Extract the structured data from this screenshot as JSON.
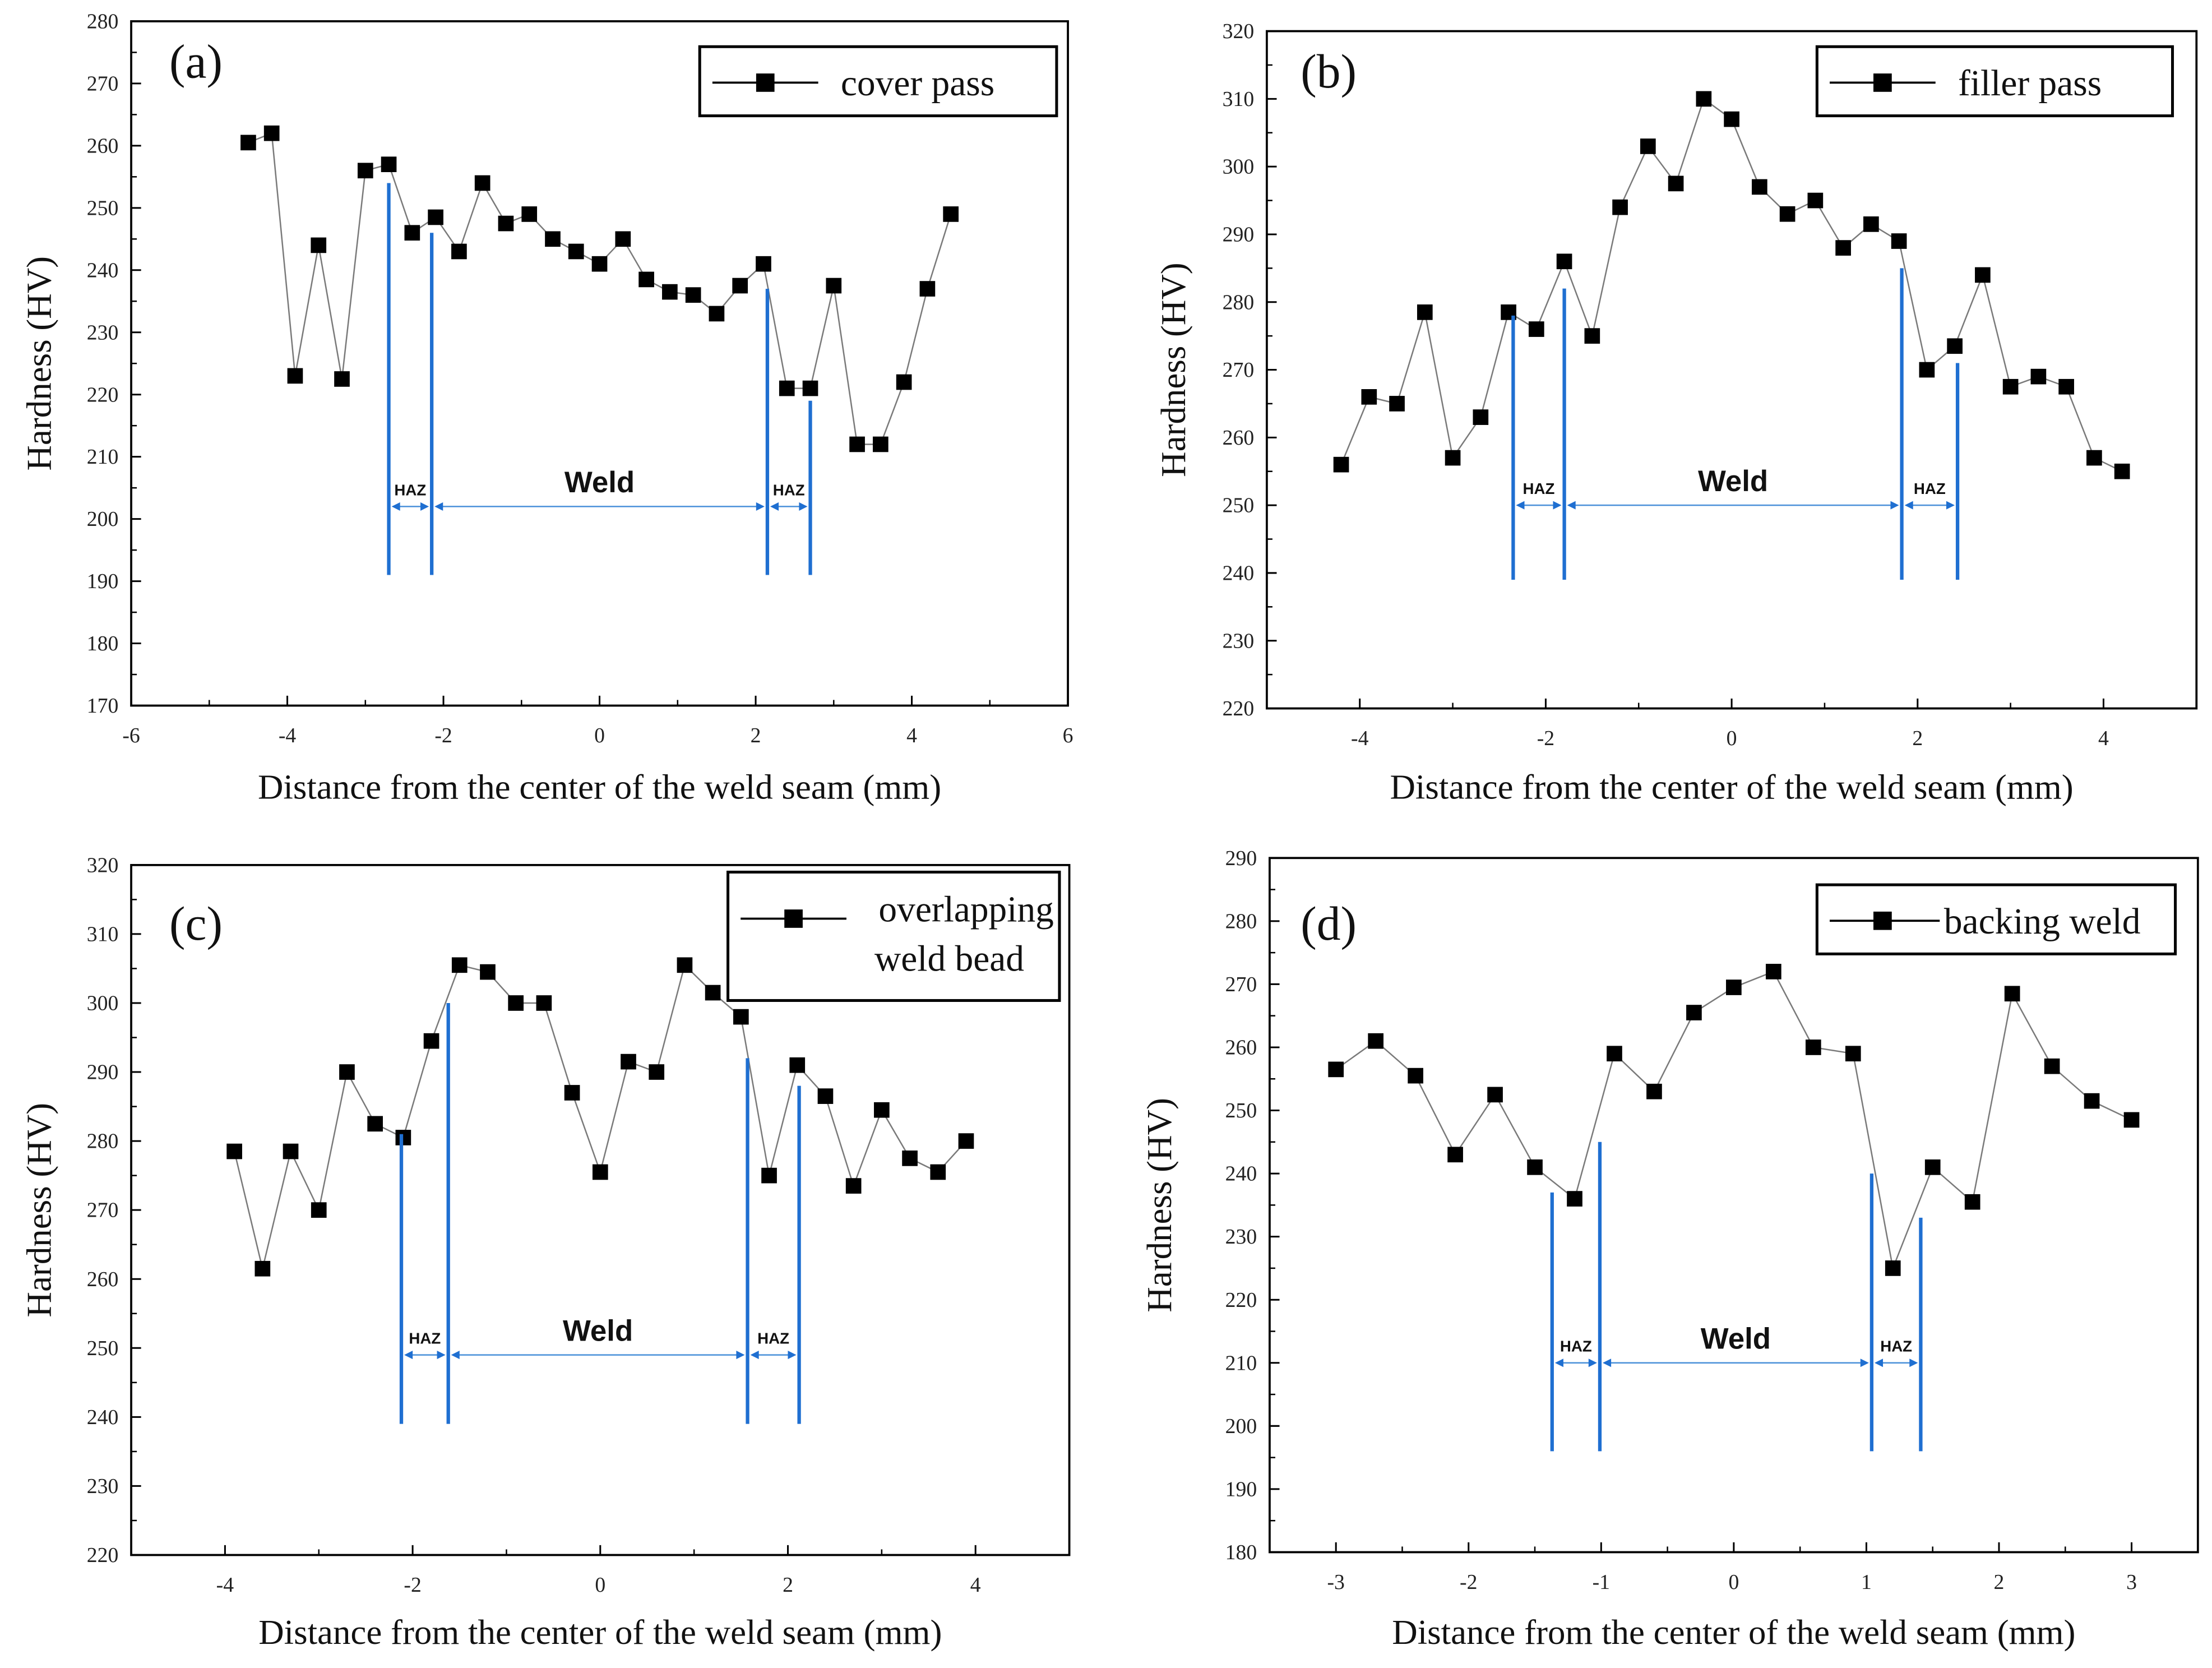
{
  "chart_data": [
    {
      "type": "line",
      "panel_label": "(a)",
      "legend": "cover pass",
      "xlabel": "Distance from the center of the weld seam (mm)",
      "ylabel": "Hardness (HV)",
      "xlim": [
        -6,
        6
      ],
      "ylim": [
        170,
        280
      ],
      "xticks": [
        -6,
        -4,
        -2,
        0,
        2,
        4,
        6
      ],
      "yticks": [
        170,
        180,
        190,
        200,
        210,
        220,
        230,
        240,
        250,
        260,
        270,
        280
      ],
      "legend_position": "top-right",
      "x": [
        -4.5,
        -4.2,
        -3.9,
        -3.6,
        -3.3,
        -3.0,
        -2.7,
        -2.4,
        -2.1,
        -1.8,
        -1.5,
        -1.2,
        -0.9,
        -0.6,
        -0.3,
        0,
        0.3,
        0.6,
        0.9,
        1.2,
        1.5,
        1.8,
        2.1,
        2.4,
        2.7,
        3.0,
        3.3,
        3.6,
        3.9,
        4.2,
        4.5
      ],
      "y": [
        260.5,
        262,
        223,
        244,
        222.5,
        256,
        257,
        246,
        248.5,
        243,
        254,
        247.5,
        249,
        245,
        243,
        241,
        245,
        238.5,
        236.5,
        236,
        233,
        237.5,
        241,
        221,
        221,
        237.5,
        212,
        212,
        222,
        237,
        249
      ],
      "zones": {
        "boundaries": [
          -2.7,
          -2.15,
          2.15,
          2.7
        ],
        "line_tops": [
          254,
          246,
          237,
          219
        ],
        "line_bottom": 191,
        "arrow_y": 202,
        "labels": [
          "HAZ",
          "Weld",
          "HAZ"
        ]
      }
    },
    {
      "type": "line",
      "panel_label": "(b)",
      "legend": "filler pass",
      "xlabel": "Distance from the center of the weld seam (mm)",
      "ylabel": "Hardness (HV)",
      "xlim": [
        -5,
        5
      ],
      "ylim": [
        220,
        320
      ],
      "xticks": [
        -4,
        -2,
        0,
        2,
        4
      ],
      "yticks": [
        220,
        230,
        240,
        250,
        260,
        270,
        280,
        290,
        300,
        310,
        320
      ],
      "legend_position": "top-right",
      "x": [
        -4.2,
        -3.9,
        -3.6,
        -3.3,
        -3.0,
        -2.7,
        -2.4,
        -2.1,
        -1.8,
        -1.5,
        -1.2,
        -0.9,
        -0.6,
        -0.3,
        0,
        0.3,
        0.6,
        0.9,
        1.2,
        1.5,
        1.8,
        2.1,
        2.4,
        2.7,
        3.0,
        3.3,
        3.6,
        3.9,
        4.2
      ],
      "y": [
        256,
        266,
        265,
        278.5,
        257,
        263,
        278.5,
        276,
        286,
        275,
        294,
        303,
        297.5,
        310,
        307,
        297,
        293,
        295,
        288,
        291.5,
        289,
        270,
        273.5,
        284,
        267.5,
        269,
        267.5,
        257,
        255
      ],
      "zones": {
        "boundaries": [
          -2.35,
          -1.8,
          1.83,
          2.43
        ],
        "line_tops": [
          278,
          282,
          285,
          271
        ],
        "line_bottom": 239,
        "arrow_y": 250,
        "labels": [
          "HAZ",
          "Weld",
          "HAZ"
        ]
      }
    },
    {
      "type": "line",
      "panel_label": "(c)",
      "legend": [
        "overlapping",
        "weld bead"
      ],
      "xlabel": "Distance from the center of the weld seam (mm)",
      "ylabel": "Hardness (HV)",
      "xlim": [
        -5,
        5
      ],
      "ylim": [
        220,
        320
      ],
      "xticks": [
        -4,
        -2,
        0,
        2,
        4
      ],
      "yticks": [
        220,
        230,
        240,
        250,
        260,
        270,
        280,
        290,
        300,
        310,
        320
      ],
      "legend_position": "top-right",
      "x": [
        -3.9,
        -3.6,
        -3.3,
        -3.0,
        -2.7,
        -2.4,
        -2.1,
        -1.8,
        -1.5,
        -1.2,
        -0.9,
        -0.6,
        -0.3,
        0,
        0.3,
        0.6,
        0.9,
        1.2,
        1.5,
        1.8,
        2.1,
        2.4,
        2.7,
        3.0,
        3.3,
        3.6,
        3.9
      ],
      "y": [
        278.5,
        261.5,
        278.5,
        270,
        290,
        282.5,
        280.5,
        294.5,
        305.5,
        304.5,
        300,
        300,
        287,
        275.5,
        291.5,
        290,
        305.5,
        301.5,
        298,
        275,
        291,
        286.5,
        273.5,
        284.5,
        277.5,
        275.5,
        280
      ],
      "zones": {
        "boundaries": [
          -2.12,
          -1.62,
          1.57,
          2.12
        ],
        "line_tops": [
          281,
          300,
          292,
          288
        ],
        "line_bottom": 239,
        "arrow_y": 249,
        "labels": [
          "HAZ",
          "Weld",
          "HAZ"
        ]
      }
    },
    {
      "type": "line",
      "panel_label": "(d)",
      "legend": "backing weld",
      "xlabel": "Distance from the center of the weld seam (mm)",
      "ylabel": "Hardness (HV)",
      "xlim": [
        -3.5,
        3.5
      ],
      "ylim": [
        180,
        290
      ],
      "xticks": [
        -3,
        -2,
        -1,
        0,
        1,
        2,
        3
      ],
      "yticks": [
        180,
        190,
        200,
        210,
        220,
        230,
        240,
        250,
        260,
        270,
        280,
        290
      ],
      "legend_position": "top-right",
      "x": [
        -3.0,
        -2.7,
        -2.4,
        -2.1,
        -1.8,
        -1.5,
        -1.2,
        -0.9,
        -0.6,
        -0.3,
        0,
        0.3,
        0.6,
        0.9,
        1.2,
        1.5,
        1.8,
        2.1,
        2.4,
        2.7,
        3.0
      ],
      "y": [
        256.5,
        261,
        255.5,
        243,
        252.5,
        241,
        236,
        259,
        253,
        265.5,
        269.5,
        272,
        260,
        259,
        225,
        241,
        235.5,
        268.5,
        257,
        251.5,
        248.5
      ],
      "zones": {
        "boundaries": [
          -1.37,
          -1.01,
          1.04,
          1.41
        ],
        "line_tops": [
          237,
          245,
          240,
          233
        ],
        "line_bottom": 196,
        "arrow_y": 210,
        "labels": [
          "HAZ",
          "Weld",
          "HAZ"
        ]
      }
    }
  ],
  "colors": {
    "series": "#000000",
    "line": "#7a7a7a",
    "zone": "#1f6fd1",
    "arrow": "#4a90d9"
  }
}
